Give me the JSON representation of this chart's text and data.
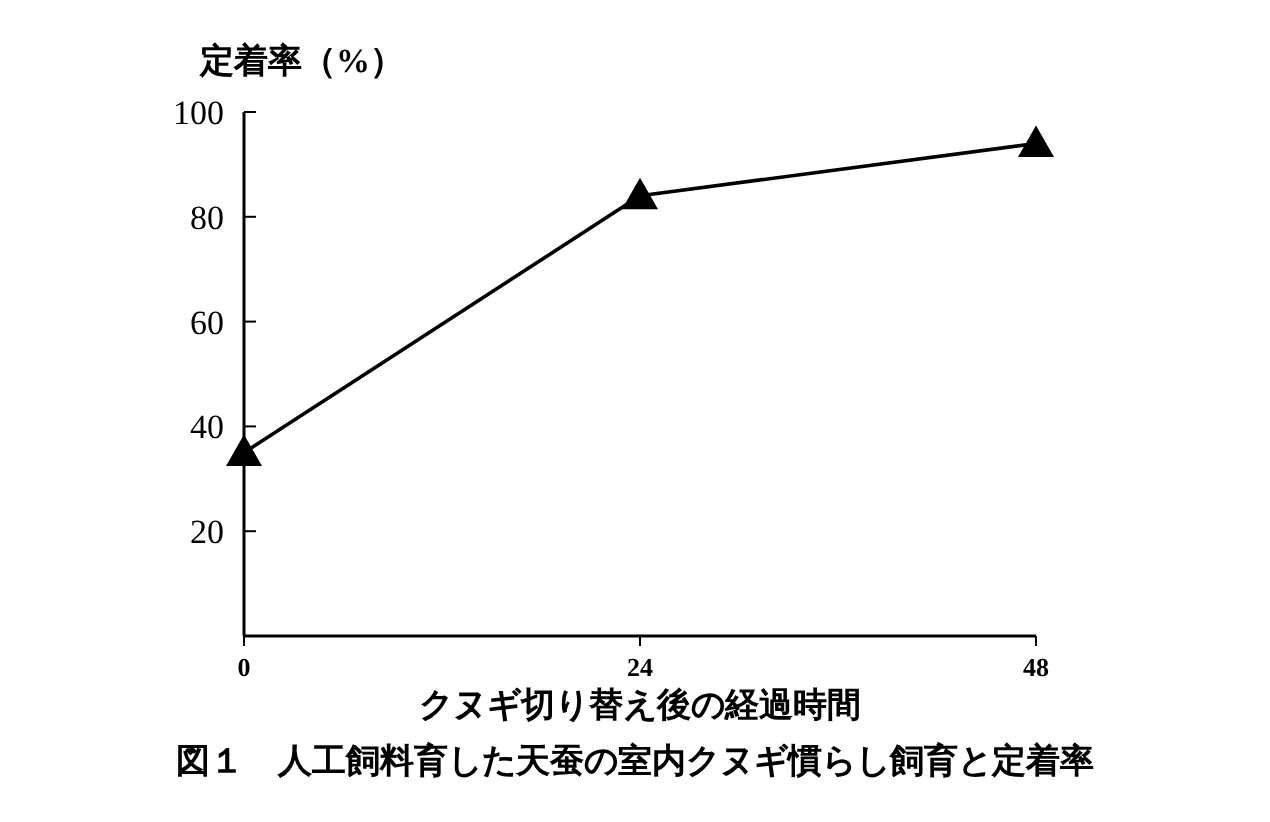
{
  "chart_data": {
    "type": "line",
    "title": "図１　人工飼料育した天蚕の室内クヌギ慣らし飼育と定着率",
    "xlabel": "クヌギ切り替え後の経過時間",
    "ylabel": "定着率（%）",
    "x": [
      0,
      24,
      48
    ],
    "series": [
      {
        "color": "#000000",
        "values": [
          35,
          84,
          94
        ]
      }
    ],
    "xlim": [
      0,
      48
    ],
    "ylim": [
      0,
      100
    ],
    "xticks": [
      0,
      24,
      48
    ],
    "yticks": [
      20,
      40,
      60,
      80,
      100
    ],
    "marker": "triangle",
    "line_style": "solid"
  }
}
